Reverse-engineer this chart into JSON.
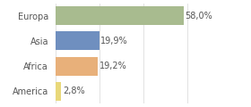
{
  "categories": [
    "Europa",
    "Asia",
    "Africa",
    "America"
  ],
  "values": [
    58.0,
    19.9,
    19.2,
    2.8
  ],
  "bar_colors": [
    "#a8bb8f",
    "#6f8fbf",
    "#e8b07a",
    "#e8d87a"
  ],
  "labels": [
    "58,0%",
    "19,9%",
    "19,2%",
    "2,8%"
  ],
  "background_color": "#ffffff",
  "text_color": "#555555",
  "xlim": [
    0,
    75
  ],
  "bar_height": 0.75,
  "label_fontsize": 7,
  "tick_fontsize": 7,
  "grid_color": "#dddddd",
  "grid_xticks": [
    0,
    20,
    40,
    60
  ]
}
